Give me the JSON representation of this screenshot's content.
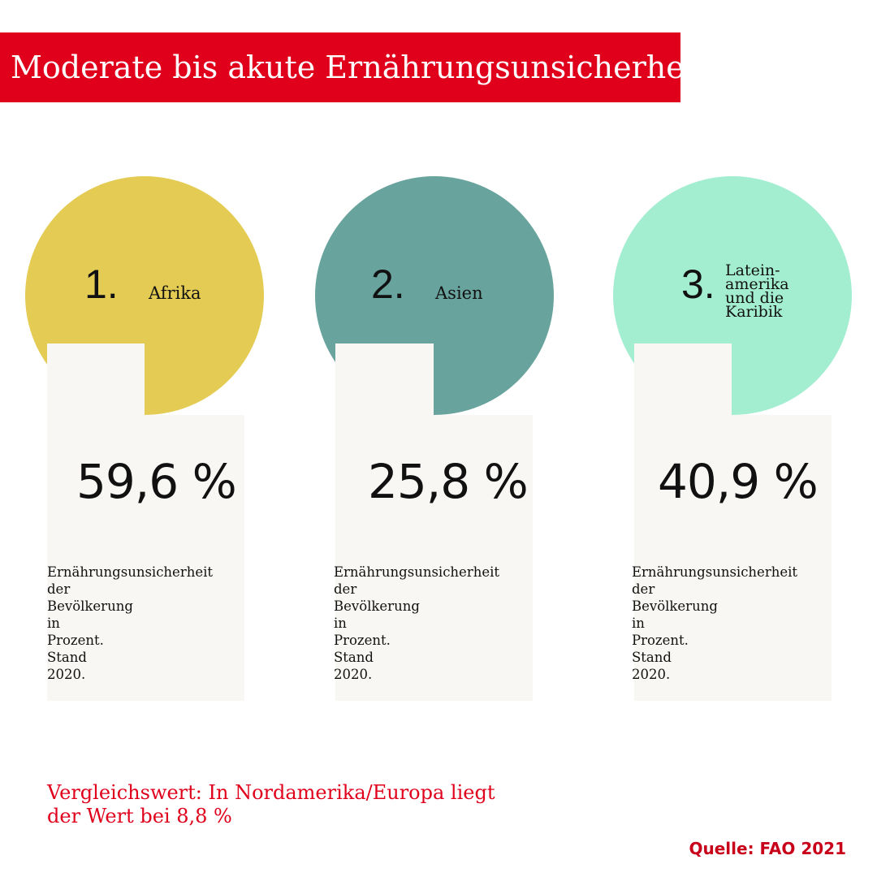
{
  "title": "Moderate bis akute Ernährungsunsicherheit:",
  "regions": [
    {
      "rank": "1.",
      "name": "Afrika",
      "value": "59,6 %",
      "color": "#e3cb54",
      "desc": "Ernährungsunsicherheit der Bevölkerung in Prozent. Stand 2020."
    },
    {
      "rank": "2.",
      "name": "Asien",
      "value": "25,8 %",
      "color": "#68a39d",
      "desc": "Ernährungsunsicherheit der Bevölkerung in Prozent. Stand 2020."
    },
    {
      "rank": "3.",
      "name": "Latein-\namerika\nund die\nKaribik",
      "value": "40,9 %",
      "color": "#a3edd1",
      "desc": "Ernährungsunsicherheit der Bevölkerung in Prozent. Stand 2020."
    }
  ],
  "comparison": "Vergleichswert: In Nordamerika/Europa liegt der Wert bei 8,8 %",
  "source": "Quelle: FAO 2021",
  "colors": {
    "accent": "#e0001b",
    "card": "#f8f7f3"
  }
}
